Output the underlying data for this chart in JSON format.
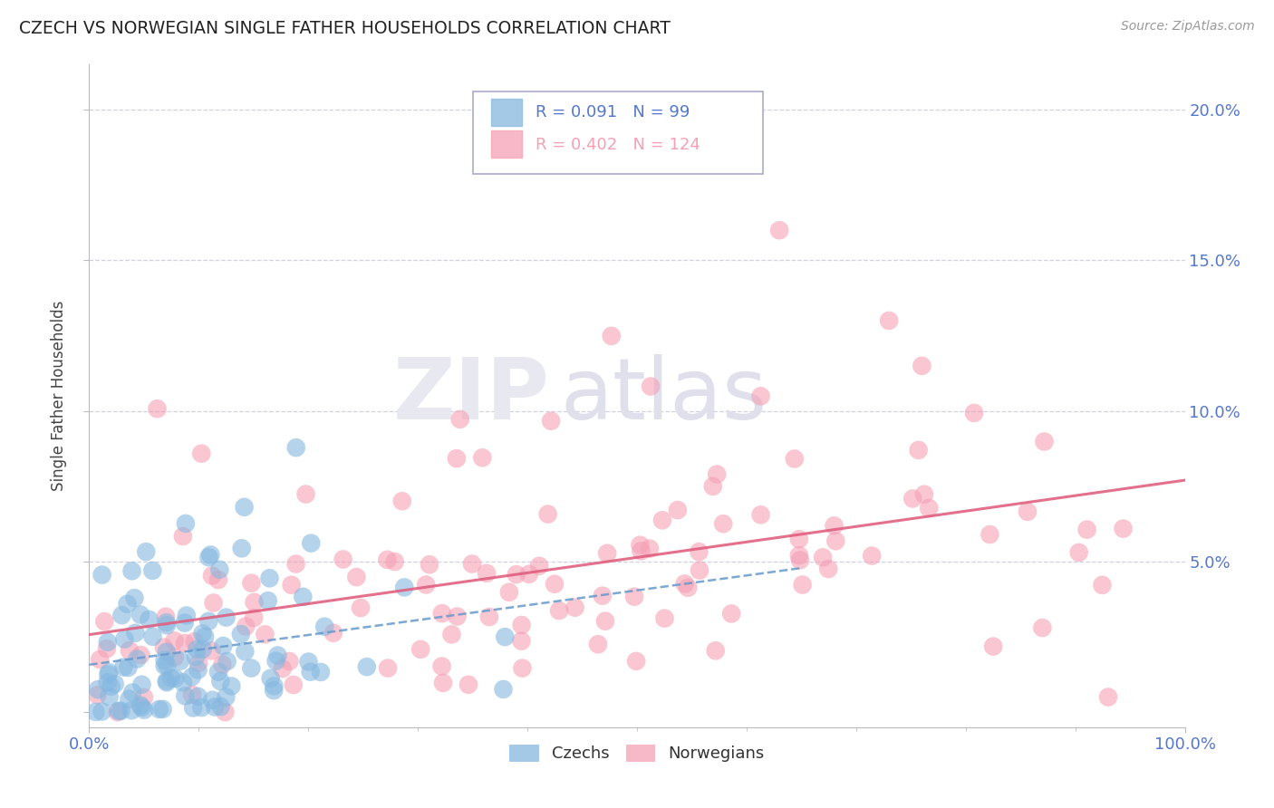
{
  "title": "CZECH VS NORWEGIAN SINGLE FATHER HOUSEHOLDS CORRELATION CHART",
  "source": "Source: ZipAtlas.com",
  "ylabel": "Single Father Households",
  "xlim": [
    0,
    1.0
  ],
  "ylim": [
    -0.005,
    0.215
  ],
  "yticks": [
    0.0,
    0.05,
    0.1,
    0.15,
    0.2
  ],
  "ytick_labels_right": [
    "",
    "5.0%",
    "10.0%",
    "15.0%",
    "20.0%"
  ],
  "xtick_labels": [
    "0.0%",
    "100.0%"
  ],
  "czech_R": 0.091,
  "czech_N": 99,
  "norwegian_R": 0.402,
  "norwegian_N": 124,
  "czech_color": "#85b8e0",
  "norwegian_color": "#f5a0b5",
  "czech_line_color": "#6699cc",
  "norwegian_line_color": "#e06080",
  "watermark_zip": "ZIP",
  "watermark_atlas": "atlas",
  "background_color": "#ffffff",
  "grid_color": "#ccccdd",
  "text_color": "#5577cc",
  "title_color": "#222222",
  "seed": 42
}
